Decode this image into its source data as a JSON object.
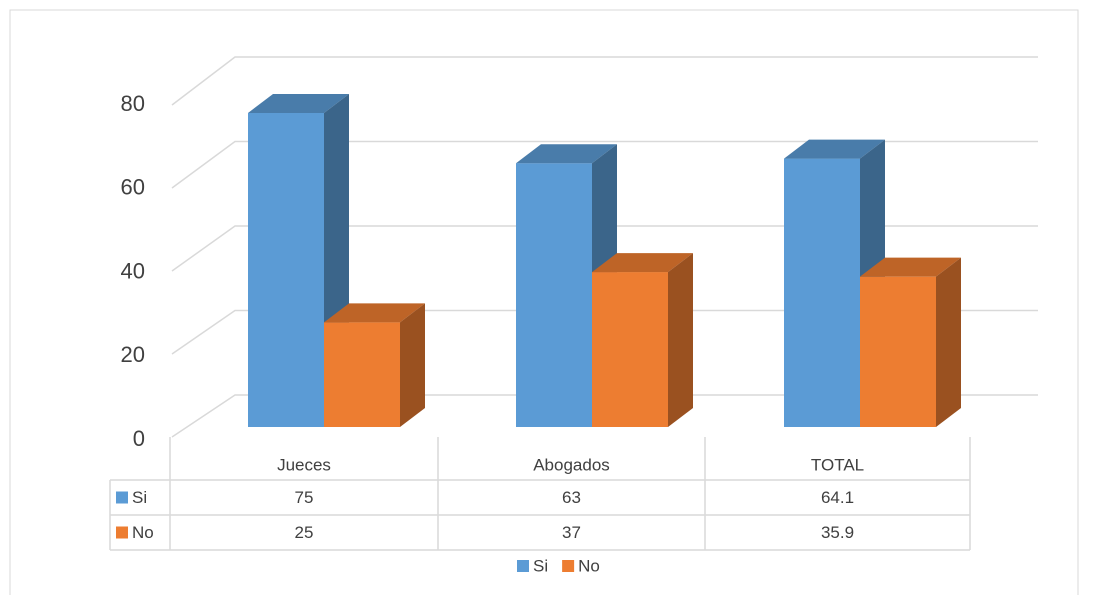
{
  "chart_data": {
    "type": "bar",
    "categories": [
      "Jueces",
      "Abogados",
      "TOTAL"
    ],
    "series": [
      {
        "name": "Si",
        "color": "#5b9bd5",
        "values": [
          75,
          63,
          64.1
        ]
      },
      {
        "name": "No",
        "color": "#ed7d31",
        "values": [
          25,
          37,
          35.9
        ]
      }
    ],
    "ylim": [
      0,
      80
    ],
    "yticks": [
      0,
      20,
      40,
      60,
      80
    ],
    "grid": true,
    "legend": "bottom",
    "data_table": true
  }
}
